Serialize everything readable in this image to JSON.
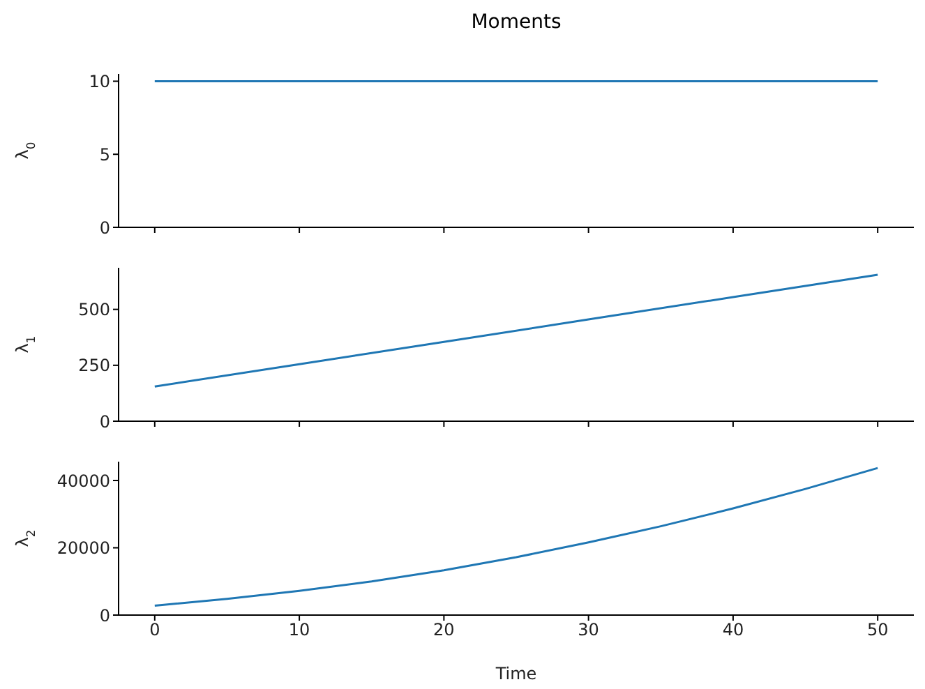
{
  "chart_data": [
    {
      "type": "line",
      "title": "Moments",
      "ylabel": "λ$_{0}$",
      "x": [
        0,
        10,
        20,
        30,
        40,
        50
      ],
      "series": [
        {
          "color": "#1f77b4",
          "values": [
            10,
            10,
            10,
            10,
            10,
            10
          ]
        }
      ],
      "xlim": [
        -2.5,
        52.5
      ],
      "xticks": [
        0,
        10,
        20,
        30,
        40,
        50
      ],
      "ylim": [
        0,
        10.5
      ],
      "yticks": [
        0,
        5,
        10
      ],
      "tick_labels": "y"
    },
    {
      "type": "line",
      "ylabel": "λ$_{1}$",
      "x": [
        0,
        10,
        20,
        30,
        40,
        50
      ],
      "series": [
        {
          "color": "#1f77b4",
          "values": [
            155,
            255,
            355,
            455,
            555,
            655
          ]
        }
      ],
      "xlim": [
        -2.5,
        52.5
      ],
      "xticks": [
        0,
        10,
        20,
        30,
        40,
        50
      ],
      "ylim": [
        0,
        686
      ],
      "yticks": [
        0,
        250,
        500
      ],
      "tick_labels": "y"
    },
    {
      "type": "line",
      "ylabel": "λ$_{2}$",
      "xlabel": "Time",
      "x": [
        0,
        5,
        10,
        15,
        20,
        25,
        30,
        35,
        40,
        45,
        50
      ],
      "series": [
        {
          "color": "#1f77b4",
          "values": [
            2800,
            4800,
            7200,
            10000,
            13300,
            17200,
            21600,
            26400,
            31700,
            37500,
            43700
          ]
        }
      ],
      "xlim": [
        -2.5,
        52.5
      ],
      "xticks": [
        0,
        10,
        20,
        30,
        40,
        50
      ],
      "ylim": [
        0,
        45600
      ],
      "yticks": [
        0,
        20000,
        40000
      ]
    }
  ]
}
